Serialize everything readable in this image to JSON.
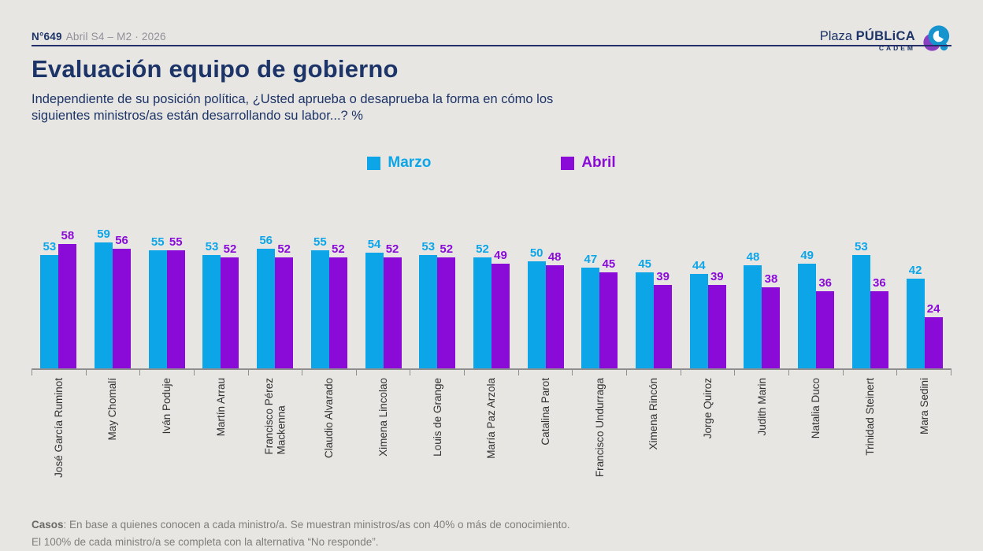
{
  "header": {
    "edition": "N°649",
    "period": "Abril S4 – M2 · 2026",
    "logo": {
      "plaza": "Plaza",
      "publica": "PÚBLiCA",
      "sub": "CADEM"
    }
  },
  "title": "Evaluación equipo de gobierno",
  "subtitle": "Independiente de su posición política, ¿Usted aprueba o desaprueba la forma en cómo los\nsiguientes ministros/as están desarrollando su labor...? %",
  "legend": [
    {
      "label": "Marzo",
      "color": "#0ca6e8"
    },
    {
      "label": "Abril",
      "color": "#8a0bd8"
    }
  ],
  "chart_data": {
    "type": "bar",
    "title": "Evaluación equipo de gobierno",
    "categories": [
      "José García Ruminot",
      "May Chomalí",
      "Iván Poduje",
      "Martín Arrau",
      "Francisco Pérez\nMackenna",
      "Claudio Alvarado",
      "Ximena Lincolao",
      "Louis de Grange",
      "María Paz Arzola",
      "Catalina Parot",
      "Francisco Undurraga",
      "Ximena Rincón",
      "Jorge Quiroz",
      "Judith Marin",
      "Natalia Duco",
      "Trinidad Steinert",
      "Mara Sedini"
    ],
    "series": [
      {
        "name": "Marzo",
        "color": "#0ca6e8",
        "values": [
          53,
          59,
          55,
          53,
          56,
          55,
          54,
          53,
          52,
          50,
          47,
          45,
          44,
          48,
          49,
          53,
          42
        ]
      },
      {
        "name": "Abril",
        "color": "#8a0bd8",
        "values": [
          58,
          56,
          55,
          52,
          52,
          52,
          52,
          52,
          49,
          48,
          45,
          39,
          39,
          38,
          36,
          36,
          24
        ]
      }
    ],
    "ylim": [
      0,
      60
    ],
    "value_labels": true,
    "grid": false,
    "legend_position": "top"
  },
  "footer": {
    "casos_label": "Casos",
    "line1_rest": ": En base a quienes conocen a cada ministro/a. Se muestran ministros/as con 40% o más de conocimiento.",
    "line2": "El 100% de cada ministro/a se completa con la alternativa “No responde”."
  }
}
